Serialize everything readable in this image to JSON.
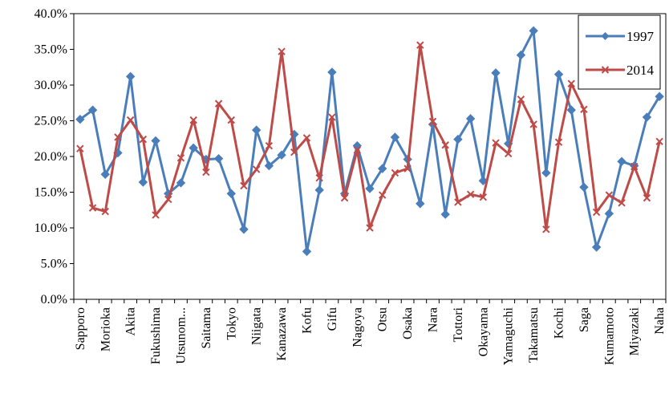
{
  "chart_data": {
    "type": "line",
    "title": "",
    "xlabel": "",
    "ylabel": "",
    "ylim": [
      0,
      40
    ],
    "yticks": [
      "0.0%",
      "5.0%",
      "10.0%",
      "15.0%",
      "20.0%",
      "25.0%",
      "30.0%",
      "35.0%",
      "40.0%"
    ],
    "grid": false,
    "legend_position": "top-right",
    "categories": [
      "Sapporo",
      "",
      "Morioka",
      "",
      "Akita",
      "",
      "Fukushima",
      "",
      "Utsunom...",
      "",
      "Saitama",
      "",
      "Tokyo",
      "",
      "Niigata",
      "",
      "Kanazawa",
      "",
      "Kofu",
      "",
      "Gifu",
      "",
      "Nagoya",
      "",
      "Otsu",
      "",
      "Osaka",
      "",
      "Nara",
      "",
      "Tottori",
      "",
      "Okayama",
      "",
      "Yamaguchi",
      "",
      "Takamatsu",
      "",
      "Kochi",
      "",
      "Saga",
      "",
      "Kumamoto",
      "",
      "Miyazaki",
      "",
      "Naha"
    ],
    "series": [
      {
        "name": "1997",
        "color": "#4A7EBB",
        "marker": "diamond",
        "values": [
          25.2,
          26.5,
          17.5,
          20.5,
          31.2,
          16.4,
          22.2,
          14.8,
          16.3,
          21.2,
          19.6,
          19.7,
          14.8,
          9.8,
          23.7,
          18.7,
          20.2,
          23.1,
          6.7,
          15.3,
          31.8,
          14.8,
          21.5,
          15.5,
          18.3,
          22.7,
          19.6,
          13.4,
          24.5,
          11.9,
          22.4,
          25.3,
          16.6,
          31.7,
          21.8,
          34.2,
          37.6,
          17.7,
          31.5,
          26.5,
          15.7,
          7.3,
          12.0,
          19.3,
          18.7,
          25.5,
          28.4
        ]
      },
      {
        "name": "2014",
        "color": "#BE4B48",
        "marker": "x",
        "values": [
          21.1,
          12.8,
          12.3,
          22.7,
          25.1,
          22.4,
          11.8,
          14.0,
          19.8,
          25.1,
          17.8,
          27.4,
          25.1,
          15.9,
          18.2,
          21.5,
          34.7,
          20.6,
          22.6,
          17.0,
          25.5,
          14.2,
          20.9,
          10.0,
          14.6,
          17.7,
          18.3,
          35.6,
          24.9,
          21.6,
          13.6,
          14.7,
          14.3,
          21.9,
          20.4,
          28.0,
          24.5,
          9.8,
          22.0,
          30.2,
          26.6,
          12.2,
          14.6,
          13.5,
          18.6,
          14.2,
          22.1
        ]
      }
    ]
  }
}
